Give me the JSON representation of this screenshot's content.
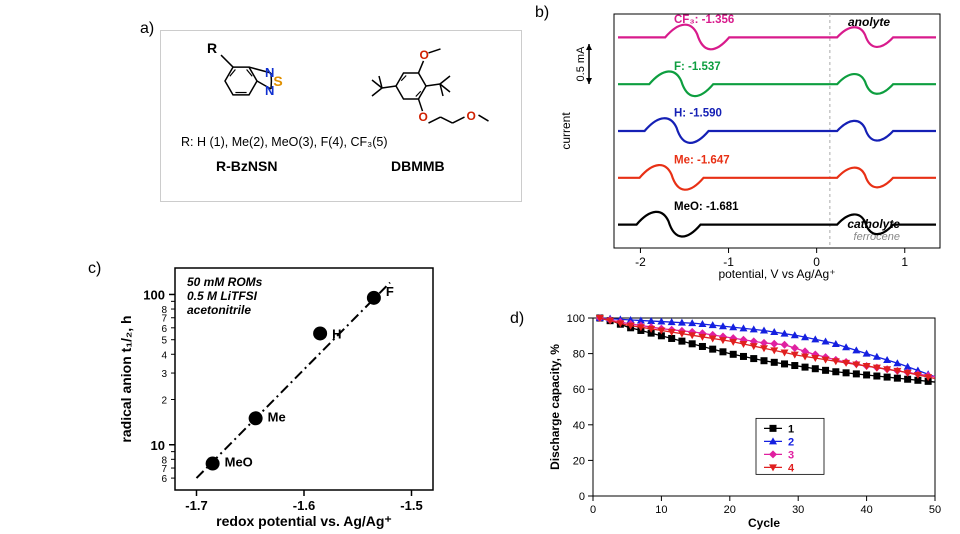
{
  "panel_a": {
    "label": "a)",
    "r_line": "R: H (1), Me(2), MeO(3), F(4), CF₃(5)",
    "name1": "R-BzNSN",
    "name2": "DBMMB",
    "r_atom": "R",
    "n1": "N",
    "n2": "N",
    "s": "S",
    "o1": "O",
    "o2": "O",
    "o3": "O",
    "colors": {
      "n": "#1030d0",
      "s": "#e09000",
      "o": "#d02000",
      "c": "#000"
    }
  },
  "panel_b": {
    "label": "b)",
    "title_top": "anolyte",
    "title_bot": "catholyte",
    "ferrocene": "ferrocene",
    "scale": "0.5 mA",
    "ylab": "current",
    "xlab": "potential, V vs Ag/Ag⁺",
    "traces": [
      {
        "color": "#d81b8c",
        "label": "CF₃: -1.356",
        "y": 0
      },
      {
        "color": "#0d9e3f",
        "label": "F: -1.537",
        "y": 1
      },
      {
        "color": "#1520b5",
        "label": "H: -1.590",
        "y": 2
      },
      {
        "color": "#e83015",
        "label": "Me: -1.647",
        "y": 3
      },
      {
        "color": "#000000",
        "label": "MeO: -1.681",
        "y": 4
      }
    ],
    "xticks": [
      "-2",
      "-1",
      "0",
      "1"
    ]
  },
  "panel_c": {
    "label": "c)",
    "cond1": "50 mM ROMs",
    "cond2": "0.5 M LiTFSI",
    "cond3": "acetonitrile",
    "ylab": "radical anion t₁/₂, h",
    "xlab": "redox potential vs. Ag/Ag⁺",
    "xticks": [
      "-1.7",
      "-1.6",
      "-1.5"
    ],
    "yticks_major": [
      "10",
      "100"
    ],
    "yticks_minor": [
      "5",
      "6",
      "7",
      "8",
      "2",
      "3",
      "4",
      "5",
      "6",
      "7",
      "8"
    ],
    "points": [
      {
        "x": -1.685,
        "y": 7.5,
        "lab": "MeO",
        "lx": 12,
        "ly": 3
      },
      {
        "x": -1.645,
        "y": 15,
        "lab": "Me",
        "lx": 12,
        "ly": 3
      },
      {
        "x": -1.585,
        "y": 55,
        "lab": "H",
        "lx": 12,
        "ly": 5
      },
      {
        "x": -1.535,
        "y": 95,
        "lab": "F",
        "lx": 12,
        "ly": -2
      }
    ],
    "fit_x": [
      -1.7,
      -1.52
    ],
    "fit_y": [
      6,
      120
    ]
  },
  "panel_d": {
    "label": "d)",
    "ylab": "Discharge capacity, %",
    "xlab": "Cycle",
    "xlim": [
      0,
      50
    ],
    "ylim": [
      0,
      100
    ],
    "xticks": [
      0,
      10,
      20,
      30,
      40,
      50
    ],
    "yticks": [
      0,
      20,
      40,
      60,
      80,
      100
    ],
    "legend": [
      {
        "k": "1",
        "color": "#000000",
        "marker": "square"
      },
      {
        "k": "2",
        "color": "#1520e0",
        "marker": "triangle"
      },
      {
        "k": "3",
        "color": "#e020a0",
        "marker": "diamond"
      },
      {
        "k": "4",
        "color": "#e02020",
        "marker": "triangle-down"
      }
    ],
    "series": {
      "1": [
        [
          1,
          100
        ],
        [
          3,
          98
        ],
        [
          5,
          95
        ],
        [
          8,
          92
        ],
        [
          12,
          88
        ],
        [
          16,
          84
        ],
        [
          20,
          80
        ],
        [
          25,
          76
        ],
        [
          30,
          73
        ],
        [
          35,
          70
        ],
        [
          40,
          68
        ],
        [
          45,
          66
        ],
        [
          50,
          64
        ]
      ],
      "2": [
        [
          1,
          100
        ],
        [
          5,
          99
        ],
        [
          10,
          98
        ],
        [
          15,
          97
        ],
        [
          20,
          95
        ],
        [
          25,
          93
        ],
        [
          30,
          90
        ],
        [
          35,
          86
        ],
        [
          40,
          80
        ],
        [
          45,
          74
        ],
        [
          50,
          67
        ]
      ],
      "3": [
        [
          1,
          100
        ],
        [
          5,
          97
        ],
        [
          10,
          94
        ],
        [
          15,
          92
        ],
        [
          20,
          89
        ],
        [
          25,
          86
        ],
        [
          28,
          85
        ],
        [
          32,
          80
        ],
        [
          36,
          76
        ],
        [
          40,
          73
        ],
        [
          45,
          70
        ],
        [
          50,
          67
        ]
      ],
      "4": [
        [
          1,
          100
        ],
        [
          5,
          96
        ],
        [
          10,
          93
        ],
        [
          15,
          90
        ],
        [
          20,
          87
        ],
        [
          25,
          83
        ],
        [
          30,
          79
        ],
        [
          35,
          76
        ],
        [
          40,
          73
        ],
        [
          45,
          70
        ],
        [
          50,
          66
        ]
      ]
    }
  }
}
